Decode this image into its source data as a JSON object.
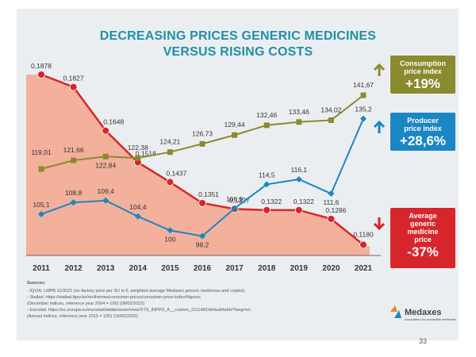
{
  "title_lines": [
    "DECREASING PRICES GENERIC MEDICINES",
    "VERSUS RISING COSTS"
  ],
  "sources": {
    "heading": "Sources:",
    "lines": [
      "- IQVIA: LMPB 12/2021 (ex-factory price per SU in €, weighted average Medaxes generic medicines and copies);",
      "- Statbel: https://statbel.fgov.be/en/themes/consumer-prices/consumer-price-index#figures",
      "  (December indices, reference year 2004 = 100) (08/02/2022)",
      "- Eurostat: https://ec.europa.eu/eurostat/databrowser/view/STS_INPPD_A__custom_2111482/default/table?lang=en",
      "  (Annual indices, reference year 2015 = 100) (16/02/2022)"
    ]
  },
  "logo": {
    "name": "Medaxes",
    "tagline": "Association for accessible medicines"
  },
  "page_number": "33",
  "callouts": {
    "consumption": {
      "title_lines": [
        "Consumption",
        "price index"
      ],
      "value": "+19%",
      "color": "#8a8a2e"
    },
    "producer": {
      "title_lines": [
        "Producer",
        "price index"
      ],
      "value": "+28,6%",
      "color": "#1b86c4"
    },
    "generic": {
      "title_lines": [
        "Average",
        "generic",
        "medicine",
        "price"
      ],
      "value": "-37%",
      "color": "#d7262b"
    }
  },
  "chart_data": {
    "type": "line",
    "categories": [
      "2011",
      "2012",
      "2013",
      "2014",
      "2015",
      "2016",
      "2017",
      "2018",
      "2019",
      "2020",
      "2021"
    ],
    "series": [
      {
        "key": "generic",
        "values": [
          0.1878,
          0.1827,
          0.1648,
          0.1518,
          0.1437,
          0.1351,
          0.1327,
          0.1322,
          0.1322,
          0.1286,
          0.118
        ],
        "labels": [
          "0,1878",
          "0,1827",
          "0,1648",
          "0,1518",
          "0,1437",
          "0,1351",
          "0,1327",
          "0,1322",
          "0,1322",
          "0,1286",
          "0,1180"
        ],
        "color": "#d7262b",
        "fill": "#f4a48b"
      },
      {
        "key": "consumption",
        "values": [
          119.01,
          121.66,
          122.84,
          122.38,
          124.21,
          126.73,
          129.44,
          132.46,
          133.46,
          134.02,
          141.67
        ],
        "labels": [
          "119,01",
          "121,66",
          "122,84",
          "122,38",
          "124,21",
          "126,73",
          "129,44",
          "132,46",
          "133,46",
          "134,02",
          "141,67"
        ],
        "color": "#8a8a2e"
      },
      {
        "key": "producer",
        "values": [
          105.1,
          108.8,
          109.4,
          104.4,
          100,
          98.2,
          106.9,
          114.5,
          116.1,
          111.6,
          135.2
        ],
        "labels": [
          "105,1",
          "108,8",
          "109,4",
          "104,4",
          "100",
          "98,2",
          "106,9",
          "114,5",
          "116,1",
          "111,6",
          "135,2"
        ],
        "color": "#1b86c4"
      }
    ],
    "grid": false,
    "legend": "right"
  }
}
